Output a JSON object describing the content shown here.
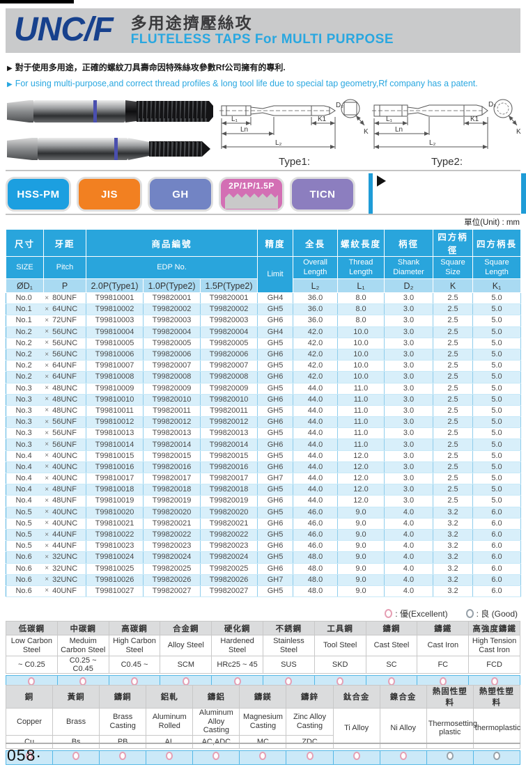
{
  "header": {
    "product_code": "UNC/F",
    "title_zh": "多用途擠壓絲攻",
    "title_en": "FLUTELESS  TAPS  For  MULTI PURPOSE"
  },
  "bullets": {
    "marker": "▶",
    "zh": "對于使用多用途，正確的螺紋刀具壽命因特殊絲攻參數Rf公司擁有的專利.",
    "en": "For using multi-purpose,and correct thread profiles & long tool life due to special tap geometry,Rf company has a patent."
  },
  "diagrams": {
    "type1_label": "Type1:",
    "type2_label": "Type2:",
    "dims": {
      "l1": "L₁",
      "ln": "Ln",
      "l2": "L₂",
      "k1": "K1",
      "d2": "D₂",
      "k": "K"
    }
  },
  "badges": [
    {
      "label": "HSS-PM",
      "color": "#1c9fe0"
    },
    {
      "label": "JIS",
      "color": "#f28021"
    },
    {
      "label": "GH",
      "color": "#7284c4"
    },
    {
      "label": "2P/1P/1.5P",
      "color": "#d36fb4",
      "thread_graphic": true
    },
    {
      "label": "TICN",
      "color": "#8c7ebf"
    }
  ],
  "unit_note": "單位(Unit) : mm",
  "spec_table": {
    "headers": {
      "zh": [
        "尺寸",
        "牙距",
        "商品編號",
        "精度",
        "全長",
        "螺紋長度",
        "柄徑",
        "四方柄徑",
        "四方柄長"
      ],
      "en": [
        "SIZE",
        "Pitch",
        "EDP No.",
        "Limit",
        "Overall Length",
        "Thread Length",
        "Shank Diameter",
        "Square Size",
        "Square Length"
      ],
      "sub": [
        "ØD₁",
        "P",
        "2.0P(Type1)",
        "1.0P(Type2)",
        "1.5P(Type2)",
        "L₂",
        "L₁",
        "D₂",
        "K",
        "K₁"
      ]
    },
    "cross": "×",
    "rows": [
      [
        "No.0",
        "80UNF",
        "T99810001",
        "T99820001",
        "T99820001",
        "GH4",
        "36.0",
        "8.0",
        "3.0",
        "2.5",
        "5.0"
      ],
      [
        "No.1",
        "64UNC",
        "T99810002",
        "T99820002",
        "T99820002",
        "GH5",
        "36.0",
        "8.0",
        "3.0",
        "2.5",
        "5.0"
      ],
      [
        "No.1",
        "72UNF",
        "T99810003",
        "T99820003",
        "T99820003",
        "GH6",
        "36.0",
        "8.0",
        "3.0",
        "2.5",
        "5.0"
      ],
      [
        "No.2",
        "56UNC",
        "T99810004",
        "T99820004",
        "T99820004",
        "GH4",
        "42.0",
        "10.0",
        "3.0",
        "2.5",
        "5.0"
      ],
      [
        "No.2",
        "56UNC",
        "T99810005",
        "T99820005",
        "T99820005",
        "GH5",
        "42.0",
        "10.0",
        "3.0",
        "2.5",
        "5.0"
      ],
      [
        "No.2",
        "56UNC",
        "T99810006",
        "T99820006",
        "T99820006",
        "GH6",
        "42.0",
        "10.0",
        "3.0",
        "2.5",
        "5.0"
      ],
      [
        "No.2",
        "64UNF",
        "T99810007",
        "T99820007",
        "T99820007",
        "GH5",
        "42.0",
        "10.0",
        "3.0",
        "2.5",
        "5.0"
      ],
      [
        "No.2",
        "64UNF",
        "T99810008",
        "T99820008",
        "T99820008",
        "GH6",
        "42.0",
        "10.0",
        "3.0",
        "2.5",
        "5.0"
      ],
      [
        "No.3",
        "48UNC",
        "T99810009",
        "T99820009",
        "T99820009",
        "GH5",
        "44.0",
        "11.0",
        "3.0",
        "2.5",
        "5.0"
      ],
      [
        "No.3",
        "48UNC",
        "T99810010",
        "T99820010",
        "T99820010",
        "GH6",
        "44.0",
        "11.0",
        "3.0",
        "2.5",
        "5.0"
      ],
      [
        "No.3",
        "48UNC",
        "T99810011",
        "T99820011",
        "T99820011",
        "GH5",
        "44.0",
        "11.0",
        "3.0",
        "2.5",
        "5.0"
      ],
      [
        "No.3",
        "56UNF",
        "T99810012",
        "T99820012",
        "T99820012",
        "GH6",
        "44.0",
        "11.0",
        "3.0",
        "2.5",
        "5.0"
      ],
      [
        "No.3",
        "56UNF",
        "T99810013",
        "T99820013",
        "T99820013",
        "GH5",
        "44.0",
        "11.0",
        "3.0",
        "2.5",
        "5.0"
      ],
      [
        "No.3",
        "56UNF",
        "T99810014",
        "T99820014",
        "T99820014",
        "GH6",
        "44.0",
        "11.0",
        "3.0",
        "2.5",
        "5.0"
      ],
      [
        "No.4",
        "40UNC",
        "T99810015",
        "T99820015",
        "T99820015",
        "GH5",
        "44.0",
        "12.0",
        "3.0",
        "2.5",
        "5.0"
      ],
      [
        "No.4",
        "40UNC",
        "T99810016",
        "T99820016",
        "T99820016",
        "GH6",
        "44.0",
        "12.0",
        "3.0",
        "2.5",
        "5.0"
      ],
      [
        "No.4",
        "40UNC",
        "T99810017",
        "T99820017",
        "T99820017",
        "GH7",
        "44.0",
        "12.0",
        "3.0",
        "2.5",
        "5.0"
      ],
      [
        "No.4",
        "48UNF",
        "T99810018",
        "T99820018",
        "T99820018",
        "GH5",
        "44.0",
        "12.0",
        "3.0",
        "2.5",
        "5.0"
      ],
      [
        "No.4",
        "48UNF",
        "T99810019",
        "T99820019",
        "T99820019",
        "GH6",
        "44.0",
        "12.0",
        "3.0",
        "2.5",
        "5.0"
      ],
      [
        "No.5",
        "40UNC",
        "T99810020",
        "T99820020",
        "T99820020",
        "GH5",
        "46.0",
        "9.0",
        "4.0",
        "3.2",
        "6.0"
      ],
      [
        "No.5",
        "40UNC",
        "T99810021",
        "T99820021",
        "T99820021",
        "GH6",
        "46.0",
        "9.0",
        "4.0",
        "3.2",
        "6.0"
      ],
      [
        "No.5",
        "44UNF",
        "T99810022",
        "T99820022",
        "T99820022",
        "GH5",
        "46.0",
        "9.0",
        "4.0",
        "3.2",
        "6.0"
      ],
      [
        "No.5",
        "44UNF",
        "T99810023",
        "T99820023",
        "T99820023",
        "GH6",
        "46.0",
        "9.0",
        "4.0",
        "3.2",
        "6.0"
      ],
      [
        "No.6",
        "32UNC",
        "T99810024",
        "T99820024",
        "T99820024",
        "GH5",
        "48.0",
        "9.0",
        "4.0",
        "3.2",
        "6.0"
      ],
      [
        "No.6",
        "32UNC",
        "T99810025",
        "T99820025",
        "T99820025",
        "GH6",
        "48.0",
        "9.0",
        "4.0",
        "3.2",
        "6.0"
      ],
      [
        "No.6",
        "32UNC",
        "T99810026",
        "T99820026",
        "T99820026",
        "GH7",
        "48.0",
        "9.0",
        "4.0",
        "3.2",
        "6.0"
      ],
      [
        "No.6",
        "40UNF",
        "T99810027",
        "T99820027",
        "T99820027",
        "GH5",
        "48.0",
        "9.0",
        "4.0",
        "3.2",
        "6.0"
      ]
    ]
  },
  "legend": {
    "excellent_label": ": 優(Excellent)",
    "good_label": ": 良 (Good)"
  },
  "material_table_1": {
    "columns": [
      {
        "zh": "低碳鋼",
        "en": "Low Carbon Steel",
        "code": "~ C0.25",
        "rating": "excellent"
      },
      {
        "zh": "中碳鋼",
        "en": "Meduim Carbon Steel",
        "code": "C0.25 ~ C0.45",
        "rating": "excellent"
      },
      {
        "zh": "高碳鋼",
        "en": "High Carbon Steel",
        "code": "C0.45 ~",
        "rating": "excellent"
      },
      {
        "zh": "合金鋼",
        "en": "Alloy Steel",
        "code": "SCM",
        "rating": "excellent"
      },
      {
        "zh": "硬化鋼",
        "en": "Hardened Steel",
        "code": "HRc25 ~ 45",
        "rating": "excellent"
      },
      {
        "zh": "不銹鋼",
        "en": "Stainless Steel",
        "code": "SUS",
        "rating": "excellent"
      },
      {
        "zh": "工具鋼",
        "en": "Tool Steel",
        "code": "SKD",
        "rating": "excellent"
      },
      {
        "zh": "鑄鋼",
        "en": "Cast Steel",
        "code": "SC",
        "rating": "excellent"
      },
      {
        "zh": "鑄鐵",
        "en": "Cast Iron",
        "code": "FC",
        "rating": "excellent"
      },
      {
        "zh": "高強度鑄鐵",
        "en": "High Tension Cast Iron",
        "code": "FCD",
        "rating": "excellent"
      }
    ]
  },
  "material_table_2": {
    "columns": [
      {
        "zh": "銅",
        "en": "Copper",
        "code": "Cu",
        "rating": "excellent"
      },
      {
        "zh": "黃銅",
        "en": "Brass",
        "code": "Bs",
        "rating": "excellent"
      },
      {
        "zh": "鑄銅",
        "en": "Brass Casting",
        "code": "PB",
        "rating": "excellent"
      },
      {
        "zh": "鋁軋",
        "en": "Aluminum Rolled",
        "code": "AL",
        "rating": "excellent"
      },
      {
        "zh": "鑄鋁",
        "en": "Aluminum Alloy Casting",
        "code": "AC,ADC",
        "rating": "excellent"
      },
      {
        "zh": "鑄鎂",
        "en": "Magnesium Casting",
        "code": "MC",
        "rating": "excellent"
      },
      {
        "zh": "鑄鋅",
        "en": "Zinc Alloy Casting",
        "code": "ZDC",
        "rating": "excellent"
      },
      {
        "zh": "鈦合金",
        "en": "Ti Alloy",
        "code": "",
        "rating": "excellent"
      },
      {
        "zh": "鎳合金",
        "en": "Ni Alloy",
        "code": "",
        "rating": "excellent"
      },
      {
        "zh": "熱固性塑料",
        "en": "Thermosetting plastic",
        "code": "",
        "rating": "good"
      },
      {
        "zh": "熱塑性塑料",
        "en": "thermoplastic",
        "code": "",
        "rating": "good"
      }
    ]
  },
  "page": {
    "number": "058·"
  }
}
